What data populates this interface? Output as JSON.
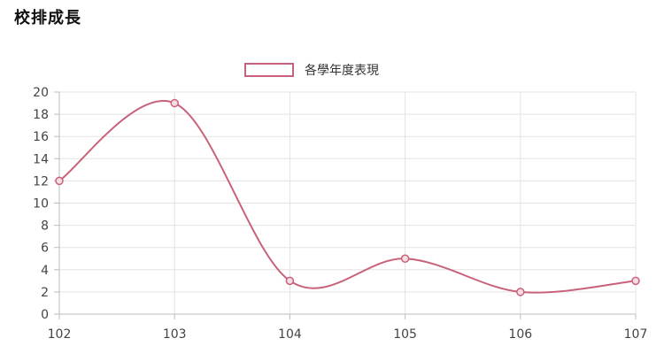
{
  "page": {
    "title": "校排成長"
  },
  "chart_data": {
    "type": "line",
    "title": "",
    "xlabel": "",
    "ylabel": "",
    "categories": [
      "102",
      "103",
      "104",
      "105",
      "106",
      "107"
    ],
    "series": [
      {
        "name": "各學年度表現",
        "values": [
          12,
          19,
          3,
          5,
          2,
          3
        ],
        "color": "#c8627a"
      }
    ],
    "ylim": [
      0,
      20
    ],
    "yticks": [
      "0",
      "2",
      "4",
      "6",
      "8",
      "10",
      "12",
      "14",
      "16",
      "18",
      "20"
    ],
    "grid": true,
    "legend_position": "top-center",
    "smooth": true
  }
}
